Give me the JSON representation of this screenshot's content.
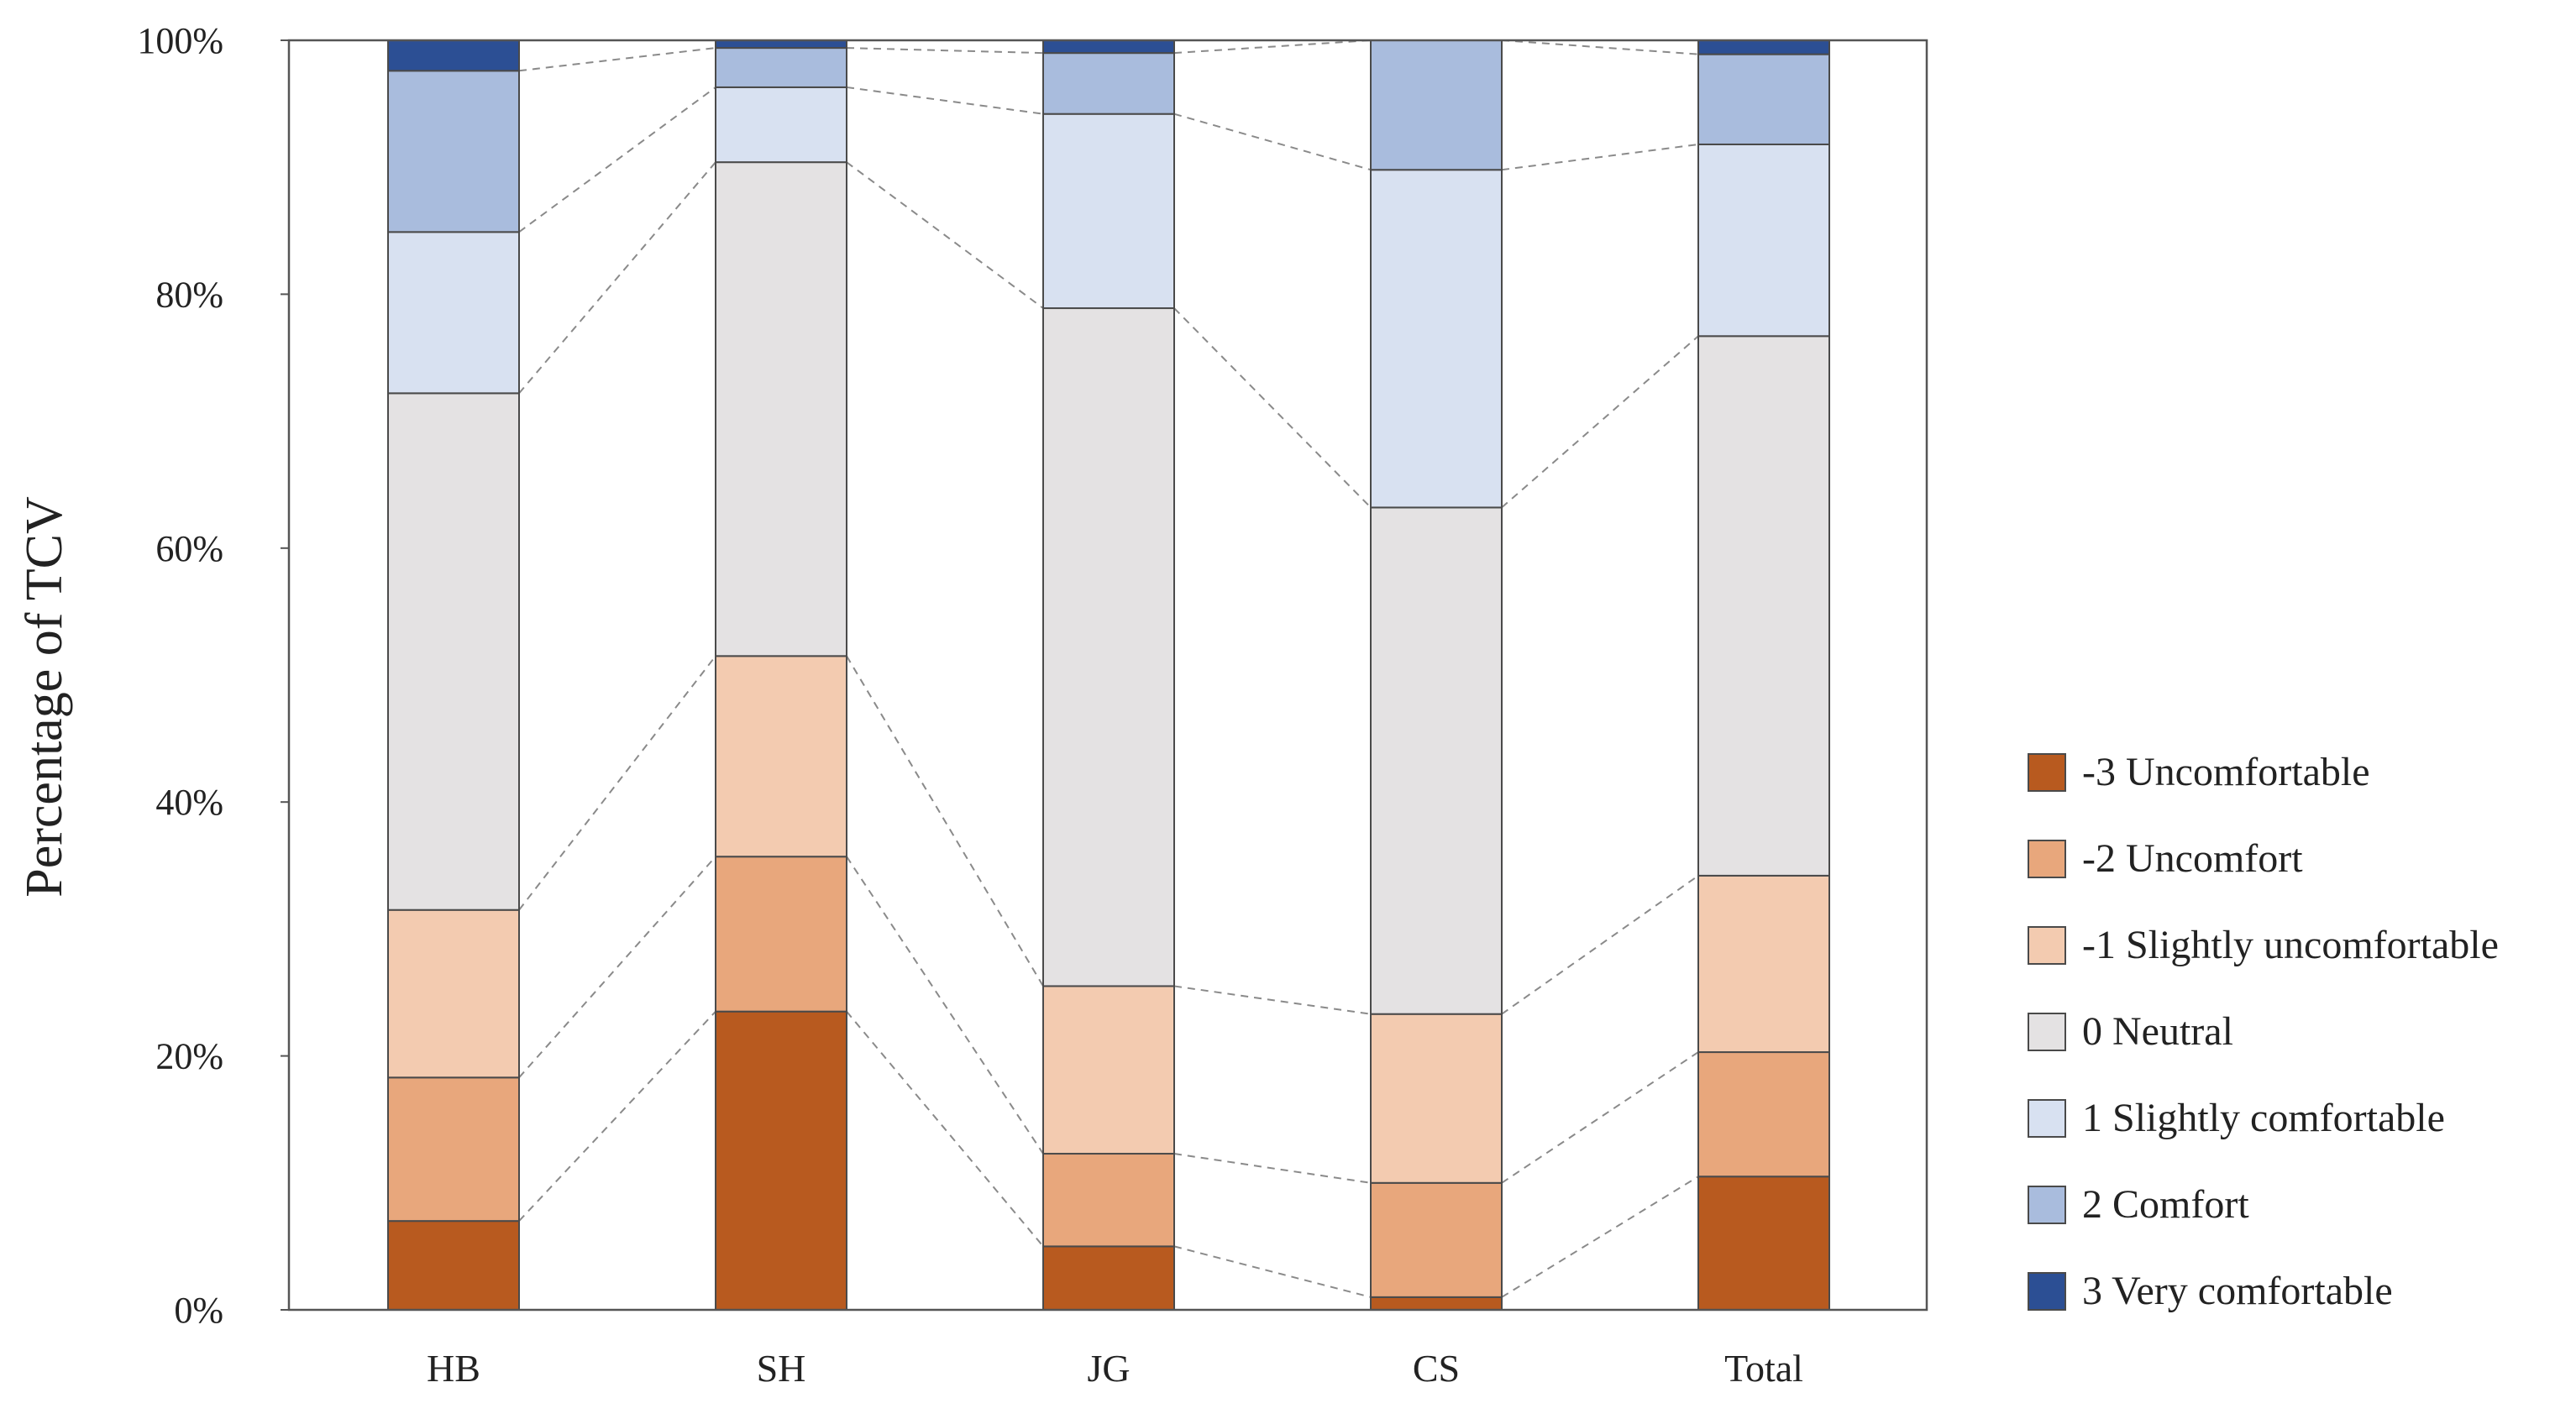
{
  "chart_data": {
    "type": "bar",
    "stacked": true,
    "normalized": true,
    "title": "",
    "xlabel": "",
    "ylabel": "Percentage of TCV",
    "ylim": [
      0,
      100
    ],
    "y_ticks": [
      "0%",
      "20%",
      "40%",
      "60%",
      "80%",
      "100%"
    ],
    "categories": [
      "HB",
      "SH",
      "JG",
      "CS",
      "Total"
    ],
    "grid": false,
    "legend_position": "right",
    "connectors": "dashed lines between segment boundaries of adjacent bars",
    "series": [
      {
        "name": "-3 Uncomfortable",
        "color": "#b85a1f",
        "values": [
          7.0,
          23.5,
          5.0,
          1.0,
          10.5
        ]
      },
      {
        "name": "-2 Uncomfort",
        "color": "#e8a77c",
        "values": [
          11.3,
          12.2,
          7.3,
          9.0,
          9.8
        ]
      },
      {
        "name": "-1 Slightly uncomfortable",
        "color": "#f3cbb0",
        "values": [
          13.2,
          15.8,
          13.2,
          13.3,
          13.9
        ]
      },
      {
        "name": "0 Neutral",
        "color": "#e4e2e3",
        "values": [
          40.7,
          38.9,
          53.4,
          39.9,
          42.5
        ]
      },
      {
        "name": "1 Slightly comfortable",
        "color": "#d8e1f1",
        "values": [
          12.7,
          5.9,
          15.3,
          26.6,
          15.1
        ]
      },
      {
        "name": "2 Comfort",
        "color": "#a9bcdd",
        "values": [
          12.7,
          3.1,
          4.8,
          10.2,
          7.1
        ]
      },
      {
        "name": "3 Very comfortable",
        "color": "#2c4f94",
        "values": [
          2.4,
          0.6,
          1.0,
          0.0,
          1.1
        ]
      }
    ]
  }
}
